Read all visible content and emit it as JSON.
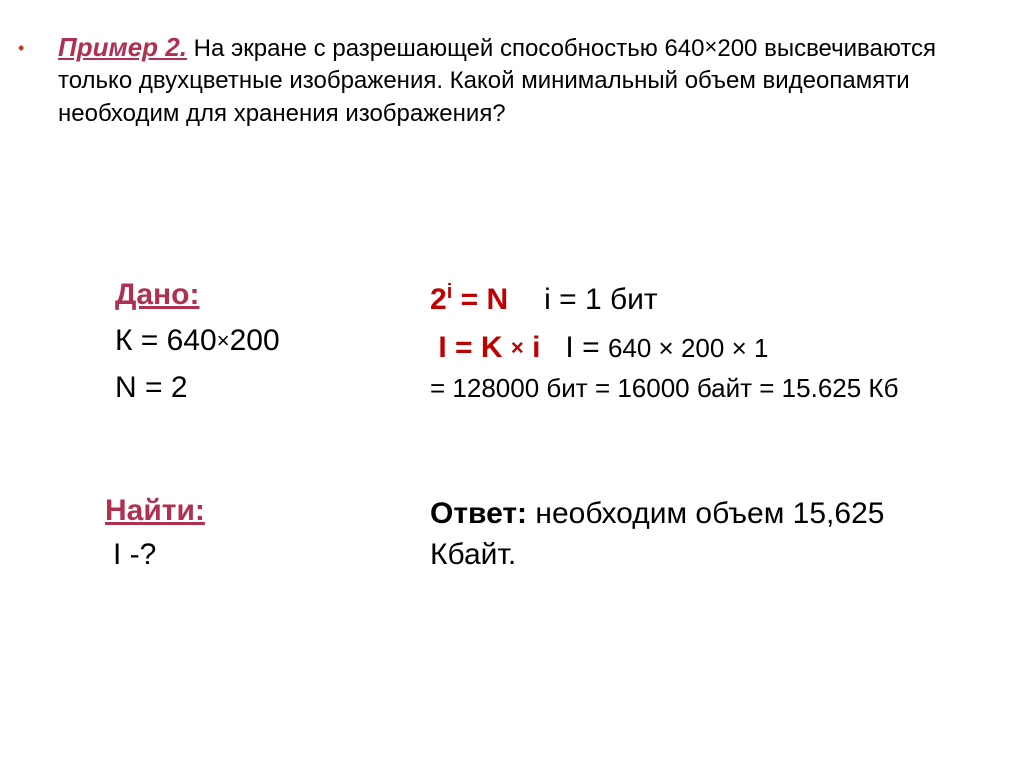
{
  "colors": {
    "accent": "#b03050",
    "formula_red": "#c00000",
    "bullet": "#c04020",
    "text": "#000000",
    "background": "#ffffff"
  },
  "typography": {
    "body_fontsize": 24,
    "heading_fontsize": 30,
    "formula_fontsize": 30,
    "small_fontsize": 26
  },
  "problem": {
    "title": "Пример 2.",
    "text_part1": " На экране с разрешающей способностью 640",
    "times1": "×",
    "text_part2": "200 высвечиваются только двухцветные изображения. Какой минимальный объем видеопамяти необходим для хранения изображения?"
  },
  "given": {
    "heading": "Дано:",
    "line1_pre": "К = 640",
    "line1_times": "×",
    "line1_post": "200",
    "line2": "N = 2"
  },
  "solution": {
    "f1_lhs_base": "2",
    "f1_lhs_exp": "i",
    "f1_lhs_eqn": " = N",
    "f1_rhs": "i = 1 бит",
    "f2_lhs_I": "I = K ",
    "f2_lhs_times": "×",
    "f2_lhs_i": " i",
    "f2_rhs_pre": "I = ",
    "f2_rhs_calc": "640 × 200 × 1",
    "f3": "= 128000 бит = 16000 байт = 15.625 Кб"
  },
  "find": {
    "heading": "Найти:",
    "line": "I -?"
  },
  "answer": {
    "label": "Ответ:",
    "text": " необходим объем 15,625 Кбайт."
  }
}
